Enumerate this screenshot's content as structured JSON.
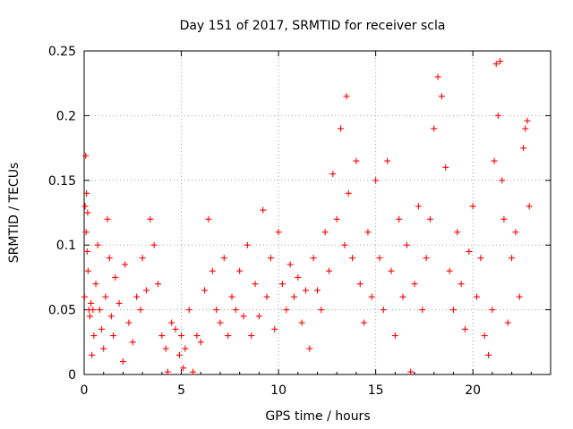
{
  "chart_data": {
    "type": "scatter",
    "title": "Day 151 of 2017, SRMTID for receiver scla",
    "xlabel": "GPS time / hours",
    "ylabel": "SRMTID / TECUs",
    "xlim": [
      0,
      24
    ],
    "ylim": [
      0,
      0.25
    ],
    "x_ticks": [
      0,
      5,
      10,
      15,
      20
    ],
    "x_tick_labels": [
      "0",
      "5",
      "10",
      "15",
      "20"
    ],
    "y_ticks": [
      0,
      0.05,
      0.1,
      0.15,
      0.2,
      0.25
    ],
    "y_tick_labels": [
      "0",
      "0.05",
      "0.1",
      "0.15",
      "0.2",
      "0.25"
    ],
    "grid": true,
    "marker": "+",
    "color": "#ff0000",
    "series": [
      {
        "name": "SRMTID",
        "points": [
          [
            0.02,
            0.06
          ],
          [
            0.05,
            0.13
          ],
          [
            0.08,
            0.169
          ],
          [
            0.1,
            0.11
          ],
          [
            0.12,
            0.14
          ],
          [
            0.15,
            0.095
          ],
          [
            0.18,
            0.125
          ],
          [
            0.2,
            0.08
          ],
          [
            0.25,
            0.05
          ],
          [
            0.3,
            0.045
          ],
          [
            0.35,
            0.055
          ],
          [
            0.4,
            0.015
          ],
          [
            0.45,
            0.05
          ],
          [
            0.5,
            0.03
          ],
          [
            0.6,
            0.07
          ],
          [
            0.7,
            0.1
          ],
          [
            0.8,
            0.05
          ],
          [
            0.9,
            0.035
          ],
          [
            1.0,
            0.02
          ],
          [
            1.1,
            0.06
          ],
          [
            1.2,
            0.12
          ],
          [
            1.3,
            0.09
          ],
          [
            1.4,
            0.045
          ],
          [
            1.5,
            0.03
          ],
          [
            1.6,
            0.075
          ],
          [
            1.8,
            0.055
          ],
          [
            2.0,
            0.01
          ],
          [
            2.1,
            0.085
          ],
          [
            2.3,
            0.04
          ],
          [
            2.5,
            0.025
          ],
          [
            2.7,
            0.06
          ],
          [
            2.9,
            0.05
          ],
          [
            3.0,
            0.09
          ],
          [
            3.2,
            0.065
          ],
          [
            3.4,
            0.12
          ],
          [
            3.6,
            0.1
          ],
          [
            3.8,
            0.07
          ],
          [
            4.0,
            0.03
          ],
          [
            4.2,
            0.02
          ],
          [
            4.3,
            0.002
          ],
          [
            4.5,
            0.04
          ],
          [
            4.7,
            0.035
          ],
          [
            4.9,
            0.015
          ],
          [
            5.0,
            0.03
          ],
          [
            5.1,
            0.005
          ],
          [
            5.2,
            0.02
          ],
          [
            5.4,
            0.05
          ],
          [
            5.6,
            0.002
          ],
          [
            5.8,
            0.03
          ],
          [
            6.0,
            0.025
          ],
          [
            6.2,
            0.065
          ],
          [
            6.4,
            0.12
          ],
          [
            6.6,
            0.08
          ],
          [
            6.8,
            0.05
          ],
          [
            7.0,
            0.04
          ],
          [
            7.2,
            0.09
          ],
          [
            7.4,
            0.03
          ],
          [
            7.6,
            0.06
          ],
          [
            7.8,
            0.05
          ],
          [
            8.0,
            0.08
          ],
          [
            8.2,
            0.045
          ],
          [
            8.4,
            0.1
          ],
          [
            8.6,
            0.03
          ],
          [
            8.8,
            0.07
          ],
          [
            9.0,
            0.045
          ],
          [
            9.2,
            0.127
          ],
          [
            9.4,
            0.06
          ],
          [
            9.6,
            0.09
          ],
          [
            9.8,
            0.035
          ],
          [
            10.0,
            0.11
          ],
          [
            10.2,
            0.07
          ],
          [
            10.4,
            0.05
          ],
          [
            10.6,
            0.085
          ],
          [
            10.8,
            0.06
          ],
          [
            11.0,
            0.075
          ],
          [
            11.2,
            0.04
          ],
          [
            11.4,
            0.065
          ],
          [
            11.6,
            0.02
          ],
          [
            11.8,
            0.09
          ],
          [
            12.0,
            0.065
          ],
          [
            12.2,
            0.05
          ],
          [
            12.4,
            0.11
          ],
          [
            12.6,
            0.08
          ],
          [
            12.8,
            0.155
          ],
          [
            13.0,
            0.12
          ],
          [
            13.2,
            0.19
          ],
          [
            13.4,
            0.1
          ],
          [
            13.5,
            0.215
          ],
          [
            13.6,
            0.14
          ],
          [
            13.8,
            0.09
          ],
          [
            14.0,
            0.165
          ],
          [
            14.2,
            0.07
          ],
          [
            14.4,
            0.04
          ],
          [
            14.6,
            0.11
          ],
          [
            14.8,
            0.06
          ],
          [
            15.0,
            0.15
          ],
          [
            15.2,
            0.09
          ],
          [
            15.4,
            0.05
          ],
          [
            15.6,
            0.165
          ],
          [
            15.8,
            0.08
          ],
          [
            16.0,
            0.03
          ],
          [
            16.2,
            0.12
          ],
          [
            16.4,
            0.06
          ],
          [
            16.6,
            0.1
          ],
          [
            16.8,
            0.002
          ],
          [
            17.0,
            0.07
          ],
          [
            17.2,
            0.13
          ],
          [
            17.4,
            0.05
          ],
          [
            17.6,
            0.09
          ],
          [
            17.8,
            0.12
          ],
          [
            18.0,
            0.19
          ],
          [
            18.2,
            0.23
          ],
          [
            18.4,
            0.215
          ],
          [
            18.6,
            0.16
          ],
          [
            18.8,
            0.08
          ],
          [
            19.0,
            0.05
          ],
          [
            19.2,
            0.11
          ],
          [
            19.4,
            0.07
          ],
          [
            19.6,
            0.035
          ],
          [
            19.8,
            0.095
          ],
          [
            20.0,
            0.13
          ],
          [
            20.2,
            0.06
          ],
          [
            20.4,
            0.09
          ],
          [
            20.6,
            0.03
          ],
          [
            20.8,
            0.015
          ],
          [
            21.0,
            0.05
          ],
          [
            21.1,
            0.165
          ],
          [
            21.2,
            0.24
          ],
          [
            21.3,
            0.2
          ],
          [
            21.4,
            0.242
          ],
          [
            21.5,
            0.15
          ],
          [
            21.6,
            0.12
          ],
          [
            21.8,
            0.04
          ],
          [
            22.0,
            0.09
          ],
          [
            22.2,
            0.11
          ],
          [
            22.4,
            0.06
          ],
          [
            22.6,
            0.175
          ],
          [
            22.7,
            0.19
          ],
          [
            22.8,
            0.196
          ],
          [
            22.9,
            0.13
          ]
        ]
      }
    ]
  }
}
